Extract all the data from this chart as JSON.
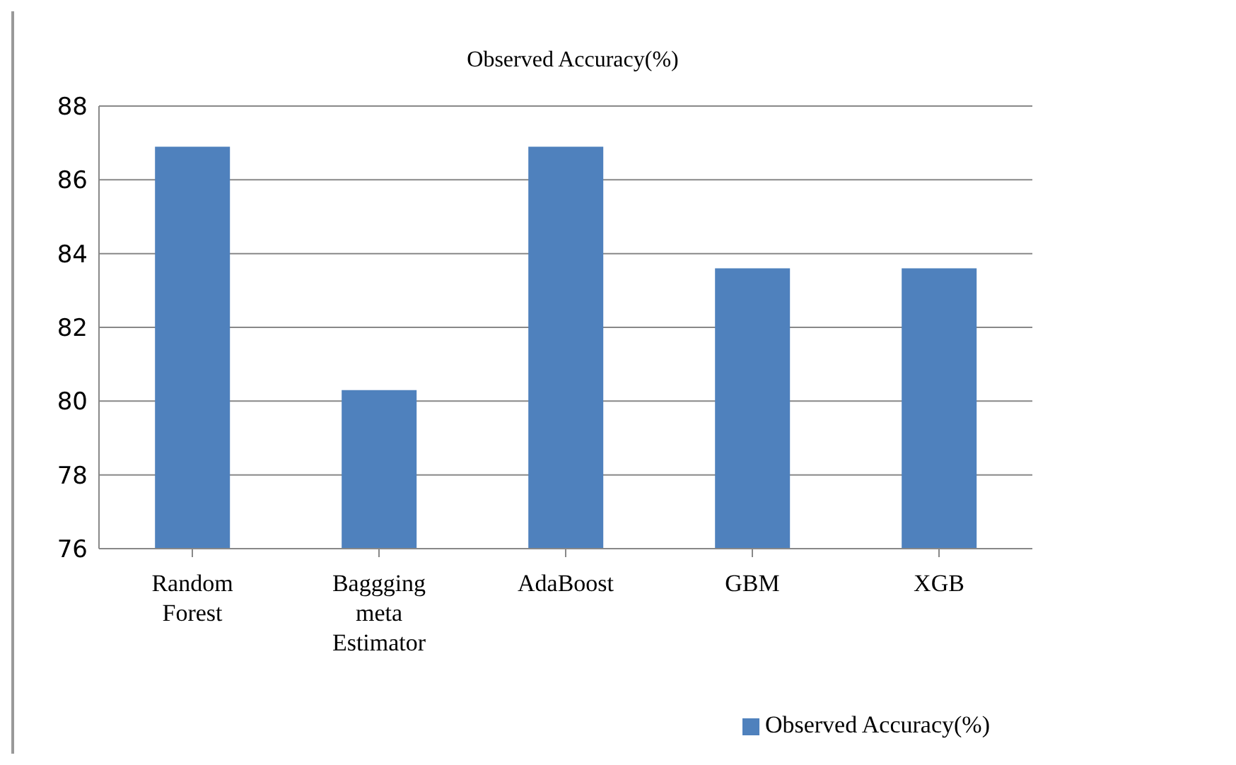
{
  "chart_data": {
    "type": "bar",
    "title": "Observed Accuracy(%)",
    "categories": [
      "Random Forest",
      "Baggging meta Estimator",
      "AdaBoost",
      "GBM",
      "XGB"
    ],
    "series": [
      {
        "name": "Observed Accuracy(%)",
        "color": "#4f81bd",
        "values": [
          86.9,
          80.3,
          86.9,
          83.6,
          83.6
        ]
      }
    ],
    "ylim": [
      76,
      88
    ],
    "yticks": [
      76,
      78,
      80,
      82,
      84,
      86,
      88
    ],
    "grid": "y",
    "legend": "bottom right"
  }
}
